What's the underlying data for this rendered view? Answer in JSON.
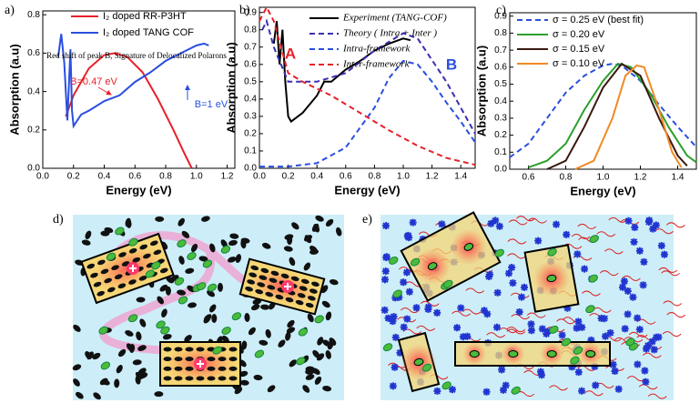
{
  "chart_data": [
    {
      "type": "line",
      "panel_label": "a)",
      "xlabel": "Energy (eV)",
      "ylabel": "Absorption (a.u)",
      "xlim": [
        0,
        1.25
      ],
      "ylim": [
        0,
        0.82
      ],
      "xticks": [
        {
          "value": 0,
          "label": "0.0"
        },
        0.2,
        0.4,
        0.6,
        0.8,
        {
          "value": 1,
          "label": "1.0"
        },
        1.2
      ],
      "yticks": [
        {
          "value": 0,
          "label": "0.0"
        },
        0.2,
        0.4,
        0.6,
        0.8
      ],
      "series": [
        {
          "name": "I₂ doped RR-P3HT",
          "color": "#e8202a",
          "x": [
            0.15,
            0.2,
            0.3,
            0.4,
            0.47,
            0.55,
            0.65,
            0.75,
            0.85,
            0.92,
            0.97
          ],
          "values": [
            0.27,
            0.38,
            0.52,
            0.59,
            0.6,
            0.58,
            0.5,
            0.36,
            0.2,
            0.08,
            0
          ]
        },
        {
          "name": "I₂ doped TANG COF",
          "color": "#2a4fe0",
          "x": [
            0.1,
            0.12,
            0.14,
            0.16,
            0.18,
            0.19,
            0.2,
            0.25,
            0.3,
            0.4,
            0.5,
            0.6,
            0.7,
            0.8,
            0.9,
            1,
            1.05,
            1.08
          ],
          "values": [
            0.58,
            0.7,
            0.55,
            0.25,
            0.62,
            0.3,
            0.22,
            0.28,
            0.3,
            0.35,
            0.38,
            0.45,
            0.5,
            0.56,
            0.6,
            0.64,
            0.65,
            0.64
          ]
        }
      ],
      "annotations": [
        {
          "text": "Red shift of peak B, Signature of Delocalized Polarons",
          "color": "#000000"
        },
        {
          "text": "B=0.47 eV",
          "color": "#e8202a"
        },
        {
          "text": "B=1 eV",
          "color": "#2a4fe0"
        }
      ]
    },
    {
      "type": "line",
      "panel_label": "b)",
      "xlabel": "Energy (eV)",
      "ylabel": "Absorption (a.u)",
      "xlim": [
        0,
        1.5
      ],
      "ylim": [
        0,
        0.93
      ],
      "xticks": [
        {
          "value": 0,
          "label": "0.0"
        },
        0.2,
        0.4,
        0.6,
        0.8,
        {
          "value": 1,
          "label": "1.0"
        },
        1.2,
        1.4
      ],
      "yticks": [
        {
          "value": 0,
          "label": "0.0"
        },
        0.1,
        0.2,
        0.3,
        0.4,
        0.5,
        0.6,
        0.7,
        0.8,
        0.9
      ],
      "series": [
        {
          "name": "Experiment (TANG-COF)",
          "color": "#000000",
          "dash": false,
          "x": [
            0.1,
            0.12,
            0.14,
            0.16,
            0.18,
            0.2,
            0.22,
            0.3,
            0.4,
            0.45,
            0.5,
            0.6,
            0.7,
            0.8,
            0.9,
            1,
            1.05
          ],
          "values": [
            0.72,
            0.85,
            0.6,
            0.8,
            0.5,
            0.3,
            0.27,
            0.32,
            0.42,
            0.5,
            0.5,
            0.57,
            0.62,
            0.68,
            0.72,
            0.75,
            0.74
          ]
        },
        {
          "name": "Theory ( Intra + Inter )",
          "color": "#3a2fb0",
          "dash": true,
          "x": [
            0.02,
            0.05,
            0.1,
            0.2,
            0.4,
            0.6,
            0.8,
            1,
            1.1,
            1.3,
            1.5
          ],
          "values": [
            0.8,
            0.85,
            0.7,
            0.5,
            0.5,
            0.55,
            0.68,
            0.78,
            0.75,
            0.5,
            0.2
          ]
        },
        {
          "name": "Intra-framework",
          "color": "#2a4fe0",
          "dash": true,
          "x": [
            0,
            0.2,
            0.4,
            0.6,
            0.8,
            0.9,
            1,
            1.1,
            1.2,
            1.3,
            1.4,
            1.5
          ],
          "values": [
            0.01,
            0.01,
            0.03,
            0.12,
            0.35,
            0.52,
            0.62,
            0.6,
            0.5,
            0.38,
            0.27,
            0.15
          ]
        },
        {
          "name": "Inter-framework",
          "color": "#e8202a",
          "dash": true,
          "x": [
            0,
            0.05,
            0.1,
            0.2,
            0.3,
            0.5,
            0.7,
            0.9,
            1.1,
            1.3,
            1.5
          ],
          "values": [
            0.85,
            0.93,
            0.85,
            0.55,
            0.5,
            0.42,
            0.32,
            0.22,
            0.13,
            0.06,
            0.02
          ]
        }
      ],
      "annotations": [
        {
          "text": "A",
          "color": "#e8202a"
        },
        {
          "text": "B",
          "color": "#2a4fe0"
        }
      ]
    },
    {
      "type": "line",
      "panel_label": "c)",
      "xlabel": "Energy (eV)",
      "ylabel": "Absorption (a.u)",
      "xlim": [
        0.5,
        1.5
      ],
      "ylim": [
        0,
        0.92
      ],
      "xticks": [
        0.6,
        0.8,
        {
          "value": 1,
          "label": "1.0"
        },
        1.2,
        1.4
      ],
      "yticks": [
        {
          "value": 0,
          "label": "0.0"
        },
        0.1,
        0.2,
        0.3,
        0.4,
        0.5,
        0.6,
        0.7,
        0.8,
        0.9
      ],
      "series": [
        {
          "name": "σ = 0.25 eV (best fit)",
          "color": "#2a4fe0",
          "dash": true,
          "x": [
            0.5,
            0.6,
            0.7,
            0.8,
            0.9,
            1,
            1.05,
            1.1,
            1.2,
            1.3,
            1.4,
            1.5
          ],
          "values": [
            0.07,
            0.15,
            0.3,
            0.45,
            0.55,
            0.61,
            0.62,
            0.61,
            0.52,
            0.38,
            0.25,
            0.13
          ]
        },
        {
          "name": "σ = 0.20 eV",
          "color": "#2ca02c",
          "dash": false,
          "x": [
            0.6,
            0.7,
            0.8,
            0.9,
            1,
            1.08,
            1.15,
            1.25,
            1.35,
            1.45,
            1.5
          ],
          "values": [
            0.01,
            0.05,
            0.15,
            0.35,
            0.52,
            0.62,
            0.6,
            0.45,
            0.25,
            0.08,
            0.04
          ]
        },
        {
          "name": "σ = 0.15 eV",
          "color": "#3a1a10",
          "dash": false,
          "x": [
            0.7,
            0.8,
            0.9,
            1,
            1.1,
            1.2,
            1.3,
            1.4,
            1.45
          ],
          "values": [
            0,
            0.05,
            0.25,
            0.48,
            0.62,
            0.55,
            0.3,
            0.08,
            0.02
          ]
        },
        {
          "name": "σ = 0.10 eV",
          "color": "#f08a24",
          "dash": false,
          "x": [
            0.85,
            0.95,
            1.05,
            1.12,
            1.18,
            1.22,
            1.3,
            1.37,
            1.42
          ],
          "values": [
            0,
            0.05,
            0.3,
            0.55,
            0.61,
            0.6,
            0.35,
            0.1,
            0.01
          ]
        }
      ],
      "annotations": []
    }
  ],
  "diagrams": [
    {
      "label": "d)"
    },
    {
      "label": "e)"
    }
  ]
}
